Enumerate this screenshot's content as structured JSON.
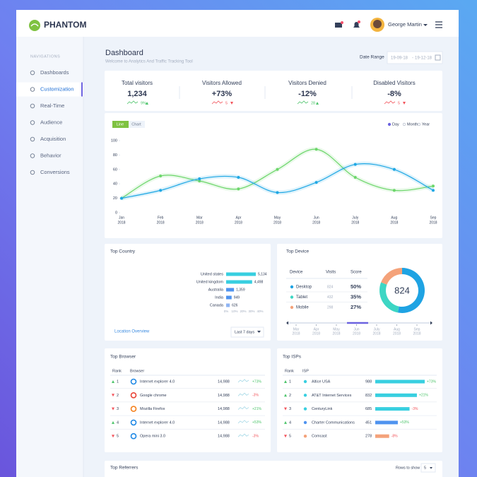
{
  "header": {
    "brand": "PHANTOM",
    "user": "George Martin"
  },
  "sidebar": {
    "heading": "NAVIGATIONS",
    "items": [
      "Dashboards",
      "Customization",
      "Real-Time",
      "Audience",
      "Acquisition",
      "Behavior",
      "Conversions"
    ],
    "active": 1
  },
  "page": {
    "title": "Dashboard",
    "subtitle": "Welcome to Analytics And Traffic Tracking Tool",
    "date_label": "Date Range",
    "date_from": "19-09-18",
    "date_to": "19-12-18"
  },
  "stats": [
    {
      "label": "Total visitors",
      "value": "1,234",
      "change": "9%",
      "trend": "up"
    },
    {
      "label": "Visitors Allowed",
      "value": "+73%",
      "change": "5",
      "trend": "down"
    },
    {
      "label": "Visitors Denied",
      "value": "-12%",
      "change": "28",
      "trend": "up"
    },
    {
      "label": "Disabled Visitors",
      "value": "-8%",
      "change": "5",
      "trend": "down"
    }
  ],
  "visitors_chart": {
    "type": "line",
    "tabs": [
      "Line",
      "Chart"
    ],
    "legend": [
      "Day",
      "Month",
      "Year"
    ],
    "categories": [
      [
        "Jan",
        "2018"
      ],
      [
        "Feb",
        "2018"
      ],
      [
        "Mar",
        "2018"
      ],
      [
        "Apr",
        "2018"
      ],
      [
        "May",
        "2018"
      ],
      [
        "Jun",
        "2018"
      ],
      [
        "July",
        "2018"
      ],
      [
        "Aug",
        "2018"
      ],
      [
        "Sep",
        "2018"
      ]
    ],
    "ylim": [
      0,
      100
    ],
    "yticks": [
      0,
      20,
      40,
      60,
      80,
      100
    ],
    "series": [
      {
        "color": "#6cd66a",
        "values": [
          20,
          51,
          44,
          33,
          60,
          88,
          49,
          31,
          37
        ]
      },
      {
        "color": "#1ea7e4",
        "values": [
          20,
          31,
          47,
          49,
          28,
          42,
          67,
          60,
          31
        ]
      }
    ]
  },
  "top_country": {
    "title": "Top Country",
    "categories": [
      "United states",
      "United kingdom",
      "Australia",
      "India",
      "Canada"
    ],
    "values": [
      5134,
      4498,
      1359,
      949,
      626
    ],
    "value_labels": [
      "5,134",
      "4,498",
      "1,359",
      "949",
      "626"
    ],
    "colors": [
      "#38cfe0",
      "#38cfe0",
      "#4f93ef",
      "#4f93ef",
      "#8fb4f3"
    ],
    "axis_labels": [
      "0%",
      "10%",
      "20%",
      "30%",
      "40%"
    ],
    "link": "Location Overview",
    "range": "Last 7 days"
  },
  "top_device": {
    "title": "Top Device",
    "columns": [
      "Device",
      "Visits",
      "Score"
    ],
    "rows": [
      {
        "device": "Desktop",
        "color": "#1fa3e3",
        "visits": 824,
        "score": "50%"
      },
      {
        "device": "Tablet",
        "color": "#3dd6c4",
        "visits": 432,
        "score": "35%"
      },
      {
        "device": "Mobile",
        "color": "#f4a27a",
        "visits": 298,
        "score": "27%"
      }
    ],
    "timeline": [
      [
        "Mar",
        "2018"
      ],
      [
        "Apr",
        "2018"
      ],
      [
        "May",
        "2018"
      ],
      [
        "Jun",
        "2018"
      ],
      [
        "July",
        "2018"
      ],
      [
        "Aug",
        "2018"
      ],
      [
        "Sep",
        "2018"
      ]
    ]
  },
  "top_browser": {
    "title": "Top Browser",
    "columns": [
      "Rank",
      "Browser"
    ],
    "rows": [
      {
        "rank": "1",
        "trend": "up",
        "name": "Internet explorer 4.0",
        "icon_color": "#1e88e5",
        "visits": "14,988",
        "change": "+73%"
      },
      {
        "rank": "2",
        "trend": "down",
        "name": "Google chrome",
        "icon_color": "#e94235",
        "visits": "14,988",
        "change": "-3%"
      },
      {
        "rank": "3",
        "trend": "down",
        "name": "Mozilla Firefox",
        "icon_color": "#f5821f",
        "visits": "14,988",
        "change": "+21%"
      },
      {
        "rank": "4",
        "trend": "up",
        "name": "Internet explorer 4.0",
        "icon_color": "#1e88e5",
        "visits": "14,988",
        "change": "+53%"
      },
      {
        "rank": "5",
        "trend": "down",
        "name": "Opera mini 3.0",
        "icon_color": "#1e88e5",
        "visits": "14,988",
        "change": "-3%"
      }
    ]
  },
  "top_isps": {
    "title": "Top ISPs",
    "columns": [
      "Rank",
      "ISP"
    ],
    "rows": [
      {
        "rank": "1",
        "trend": "up",
        "name": "Altice USA",
        "color": "#38cfe0",
        "visits": 988,
        "change": "+73%"
      },
      {
        "rank": "2",
        "trend": "up",
        "name": "AT&T Internet Services",
        "color": "#38cfe0",
        "visits": 832,
        "change": "+21%"
      },
      {
        "rank": "3",
        "trend": "down",
        "name": "CenturyLink",
        "color": "#38cfe0",
        "visits": 685,
        "change": "-3%"
      },
      {
        "rank": "4",
        "trend": "up",
        "name": "Charter Communications",
        "color": "#4f93ef",
        "visits": 451,
        "change": "+53%"
      },
      {
        "rank": "5",
        "trend": "down",
        "name": "Comcast",
        "color": "#f4a27a",
        "visits": 278,
        "change": "-8%"
      }
    ]
  },
  "top_referrers": {
    "title": "Top Referrers",
    "rows_label": "Rows to show",
    "rows": 5
  }
}
